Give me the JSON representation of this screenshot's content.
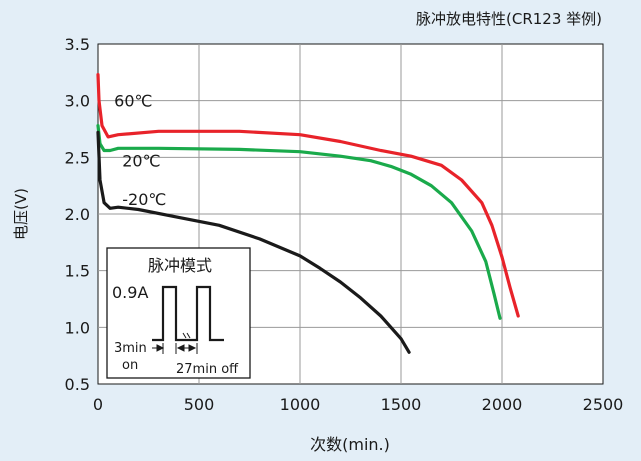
{
  "chart_data": {
    "type": "line",
    "title": "脉冲放电特性(CR123 举例)",
    "xlabel": "次数(min.)",
    "ylabel": "电压(V)",
    "xlim": [
      0,
      2500
    ],
    "ylim": [
      0.5,
      3.5
    ],
    "x_ticks": [
      0,
      500,
      1000,
      1500,
      2000,
      2500
    ],
    "y_ticks": [
      0.5,
      1.0,
      1.5,
      2.0,
      2.5,
      3.0,
      3.5
    ],
    "x_tick_labels": [
      "0",
      "500",
      "1000",
      "1500",
      "2000",
      "2500"
    ],
    "y_tick_labels": [
      "0.5",
      "1.0",
      "1.5",
      "2.0",
      "2.5",
      "3.0",
      "3.5"
    ],
    "grid": true,
    "series": [
      {
        "name": "60℃",
        "color": "#e8232a",
        "points": [
          [
            0,
            3.23
          ],
          [
            5,
            3.0
          ],
          [
            20,
            2.78
          ],
          [
            50,
            2.68
          ],
          [
            100,
            2.7
          ],
          [
            300,
            2.73
          ],
          [
            700,
            2.73
          ],
          [
            1000,
            2.7
          ],
          [
            1200,
            2.64
          ],
          [
            1400,
            2.56
          ],
          [
            1550,
            2.51
          ],
          [
            1700,
            2.43
          ],
          [
            1800,
            2.3
          ],
          [
            1900,
            2.1
          ],
          [
            1950,
            1.9
          ],
          [
            2000,
            1.62
          ],
          [
            2040,
            1.35
          ],
          [
            2080,
            1.1
          ]
        ]
      },
      {
        "name": "20℃",
        "color": "#1aaa4b",
        "points": [
          [
            0,
            2.78
          ],
          [
            10,
            2.62
          ],
          [
            30,
            2.56
          ],
          [
            60,
            2.56
          ],
          [
            100,
            2.58
          ],
          [
            300,
            2.58
          ],
          [
            700,
            2.57
          ],
          [
            1000,
            2.55
          ],
          [
            1200,
            2.51
          ],
          [
            1350,
            2.47
          ],
          [
            1450,
            2.42
          ],
          [
            1550,
            2.35
          ],
          [
            1650,
            2.25
          ],
          [
            1750,
            2.1
          ],
          [
            1850,
            1.85
          ],
          [
            1920,
            1.58
          ],
          [
            1960,
            1.3
          ],
          [
            1990,
            1.08
          ]
        ]
      },
      {
        "name": "-20℃",
        "color": "#1a1a1a",
        "points": [
          [
            0,
            2.72
          ],
          [
            10,
            2.3
          ],
          [
            30,
            2.1
          ],
          [
            60,
            2.05
          ],
          [
            100,
            2.06
          ],
          [
            200,
            2.04
          ],
          [
            400,
            1.97
          ],
          [
            600,
            1.9
          ],
          [
            800,
            1.78
          ],
          [
            1000,
            1.63
          ],
          [
            1100,
            1.52
          ],
          [
            1200,
            1.4
          ],
          [
            1300,
            1.26
          ],
          [
            1400,
            1.1
          ],
          [
            1500,
            0.9
          ],
          [
            1540,
            0.78
          ]
        ]
      }
    ],
    "series_labels": [
      {
        "text": "60℃",
        "x": 80,
        "y": 2.95
      },
      {
        "text": "20℃",
        "x": 120,
        "y": 2.42
      },
      {
        "text": "-20℃",
        "x": 120,
        "y": 2.08
      }
    ],
    "inset": {
      "title": "脉冲模式",
      "current_label": "0.9A",
      "on_label_1": "3min",
      "on_label_2": "on",
      "off_label": "27min off"
    }
  }
}
